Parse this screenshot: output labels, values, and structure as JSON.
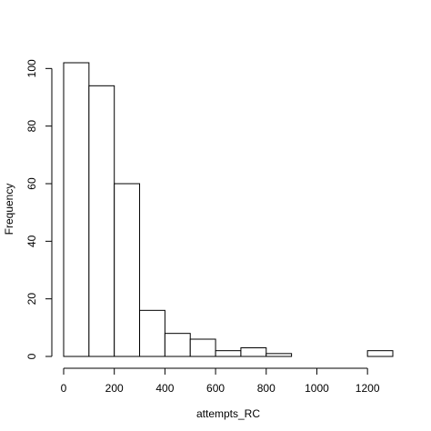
{
  "chart_data": {
    "type": "bar",
    "title": "",
    "xlabel": "attempts_RC",
    "ylabel": "Frequency",
    "bin_edges": [
      0,
      100,
      200,
      300,
      400,
      500,
      600,
      700,
      800,
      900,
      1000,
      1100,
      1200,
      1300
    ],
    "values": [
      102,
      94,
      60,
      16,
      8,
      6,
      2,
      3,
      1,
      0,
      0,
      0,
      2
    ],
    "xlim": [
      0,
      1300
    ],
    "ylim": [
      0,
      102
    ],
    "x_ticks": [
      0,
      200,
      400,
      600,
      800,
      1000,
      1200
    ],
    "y_ticks": [
      0,
      20,
      40,
      60,
      80,
      100
    ],
    "grid": false,
    "bar_fill": "#ffffff",
    "bar_stroke": "#000000"
  }
}
